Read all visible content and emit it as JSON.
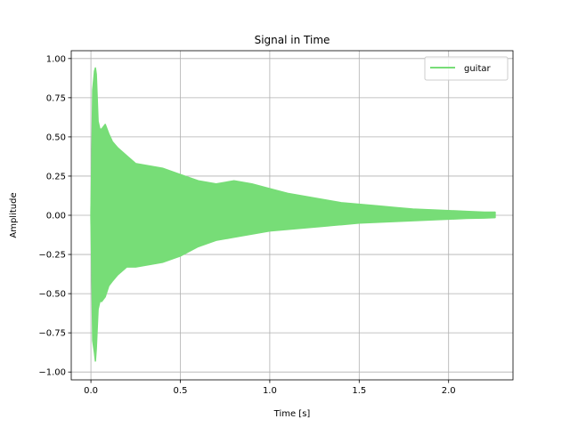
{
  "chart_data": {
    "type": "area",
    "title": "Signal in Time",
    "xlabel": "Time [s]",
    "ylabel": "Amplitude",
    "xlim": [
      -0.11,
      2.36
    ],
    "ylim": [
      -1.05,
      1.05
    ],
    "x_ticks": [
      0.0,
      0.5,
      1.0,
      1.5,
      2.0
    ],
    "x_tick_labels": [
      "0.0",
      "0.5",
      "1.0",
      "1.5",
      "2.0"
    ],
    "y_ticks": [
      -1.0,
      -0.75,
      -0.5,
      -0.25,
      0.0,
      0.25,
      0.5,
      0.75,
      1.0
    ],
    "y_tick_labels": [
      "−1.00",
      "−0.75",
      "−0.50",
      "−0.25",
      "0.00",
      "0.25",
      "0.50",
      "0.75",
      "1.00"
    ],
    "grid": true,
    "legend_position": "top-right",
    "series": [
      {
        "name": "guitar",
        "color": "#77dd77",
        "x": [
          0.0,
          0.005,
          0.01,
          0.02,
          0.025,
          0.03,
          0.04,
          0.05,
          0.06,
          0.08,
          0.1,
          0.12,
          0.15,
          0.2,
          0.25,
          0.3,
          0.35,
          0.4,
          0.5,
          0.6,
          0.7,
          0.8,
          0.9,
          1.0,
          1.1,
          1.2,
          1.3,
          1.4,
          1.5,
          1.6,
          1.7,
          1.8,
          1.9,
          2.0,
          2.1,
          2.2,
          2.26
        ],
        "upper": [
          0.02,
          0.35,
          0.8,
          0.92,
          0.94,
          0.9,
          0.6,
          0.55,
          0.55,
          0.58,
          0.52,
          0.47,
          0.43,
          0.38,
          0.33,
          0.32,
          0.31,
          0.3,
          0.26,
          0.22,
          0.2,
          0.22,
          0.2,
          0.17,
          0.14,
          0.12,
          0.1,
          0.08,
          0.07,
          0.06,
          0.05,
          0.04,
          0.035,
          0.03,
          0.025,
          0.02,
          0.02
        ],
        "lower": [
          -0.02,
          -0.35,
          -0.8,
          -0.88,
          -0.93,
          -0.85,
          -0.6,
          -0.55,
          -0.55,
          -0.52,
          -0.45,
          -0.42,
          -0.38,
          -0.33,
          -0.33,
          -0.32,
          -0.31,
          -0.3,
          -0.26,
          -0.2,
          -0.16,
          -0.14,
          -0.12,
          -0.1,
          -0.09,
          -0.08,
          -0.07,
          -0.06,
          -0.05,
          -0.045,
          -0.04,
          -0.035,
          -0.03,
          -0.025,
          -0.02,
          -0.018,
          -0.015
        ]
      }
    ]
  }
}
